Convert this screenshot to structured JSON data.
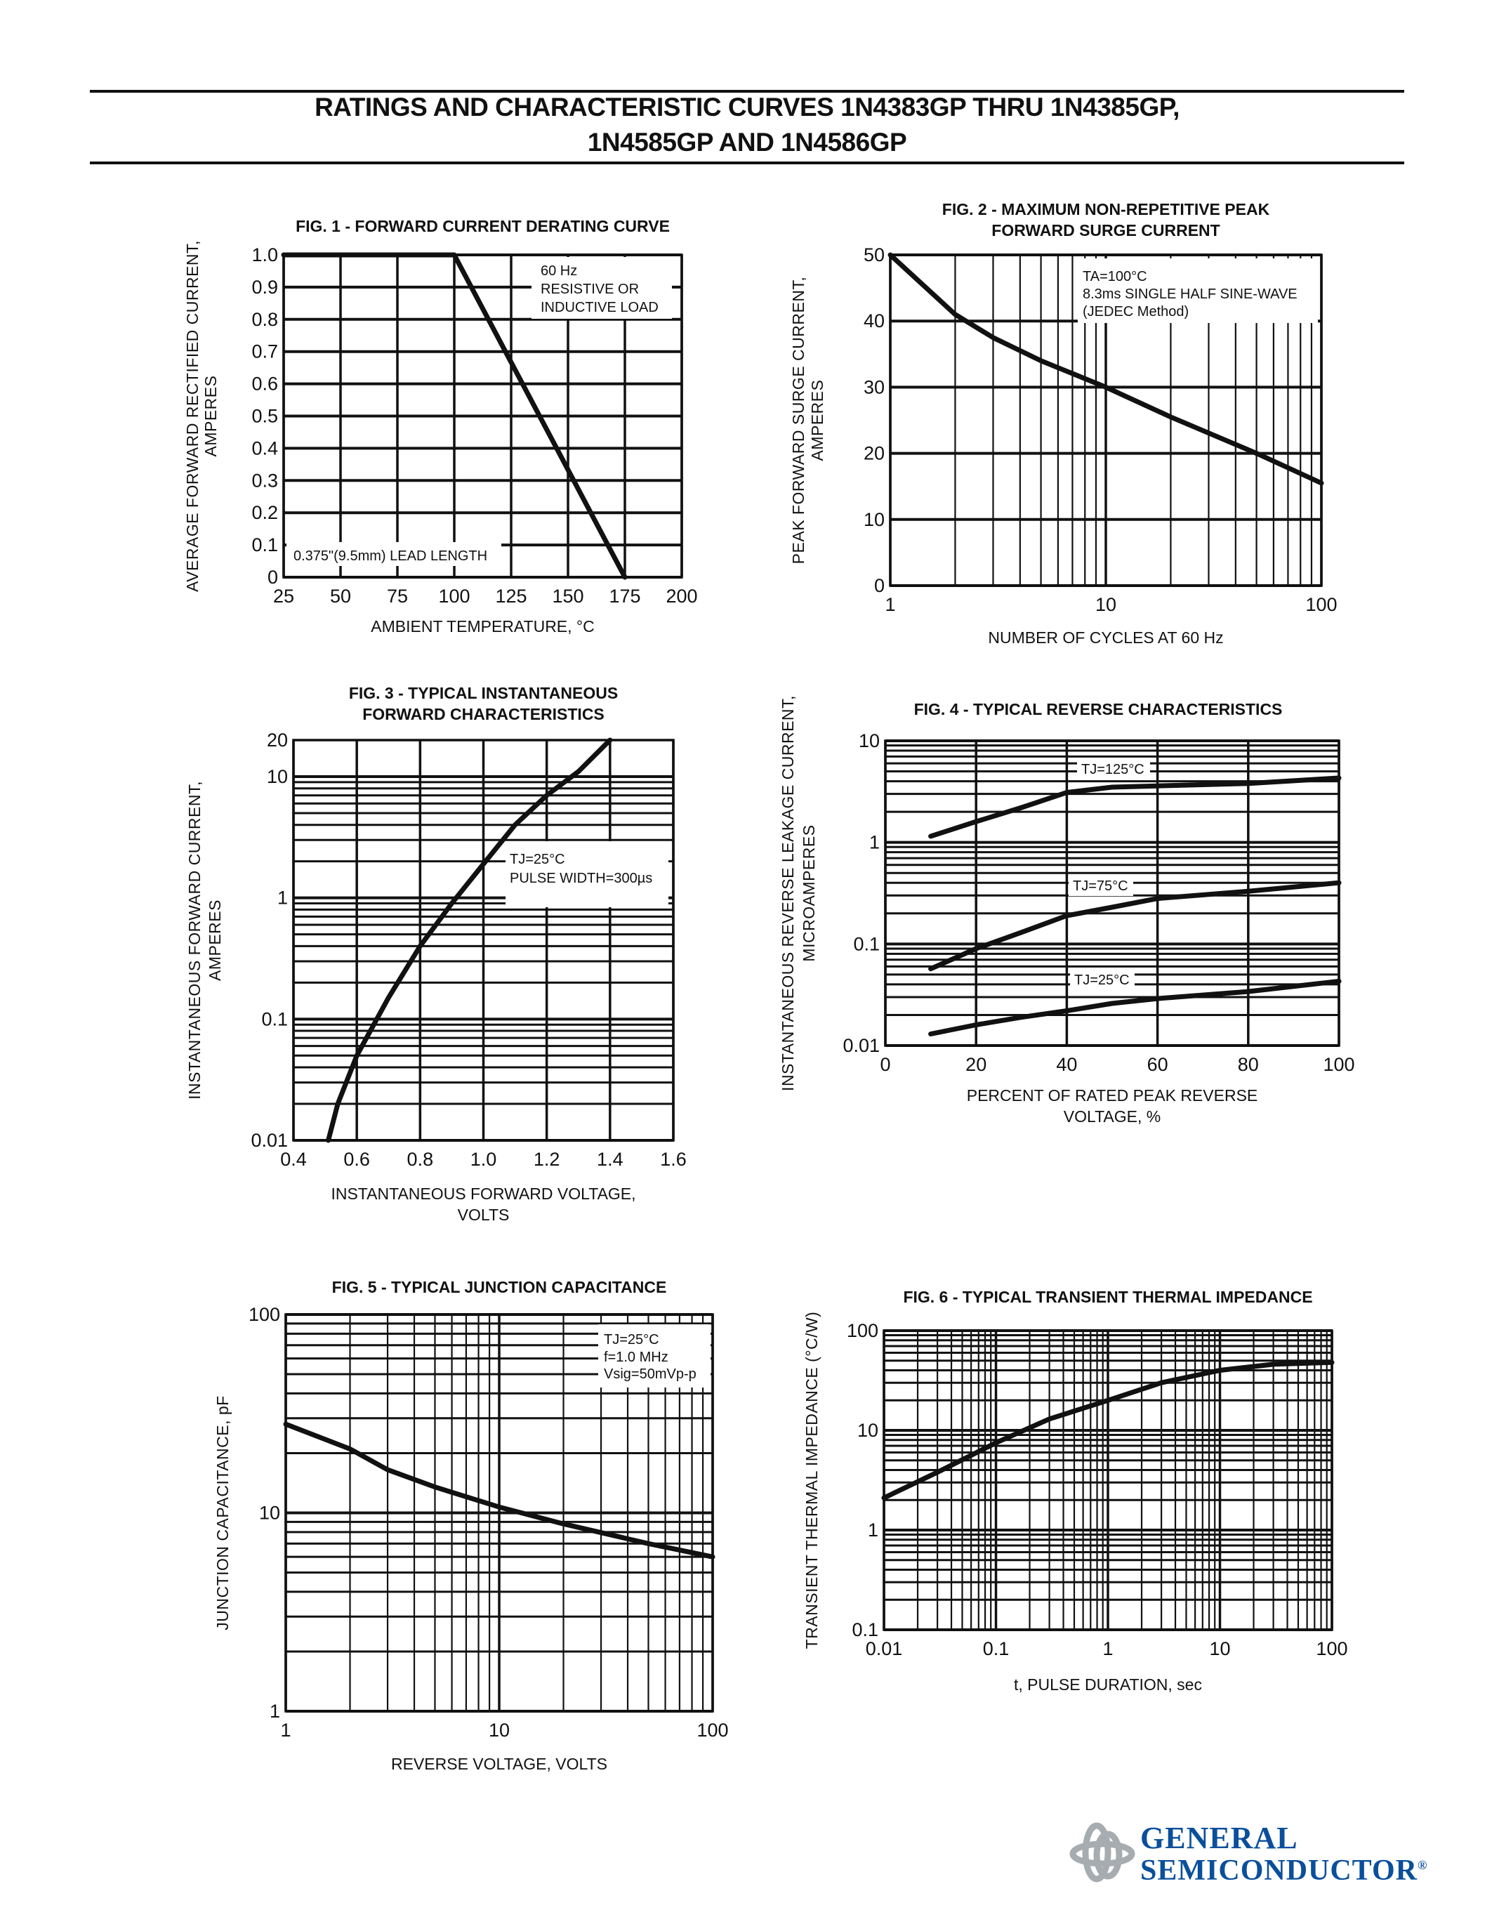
{
  "header": {
    "title_line1": "RATINGS AND CHARACTERISTIC CURVES 1N4383GP THRU 1N4385GP,",
    "title_line2": "1N4585GP AND 1N4586GP"
  },
  "logo": {
    "line1": "GENERAL",
    "line2": "SEMICONDUCTOR",
    "registered": "®",
    "text_color": "#0a4f9c",
    "mark_color": "#a7acb0"
  },
  "chart_data": [
    {
      "type": "line",
      "title_lines": [
        "FIG. 1 - FORWARD CURRENT DERATING CURVE"
      ],
      "xlabel_lines": [
        "AMBIENT TEMPERATURE, °C"
      ],
      "ylabel_lines": [
        "AVERAGE FORWARD RECTIFIED CURRENT,",
        "AMPERES"
      ],
      "x_scale": "linear",
      "y_scale": "linear",
      "xlim": [
        25,
        200
      ],
      "ylim": [
        0,
        1.0
      ],
      "xticks": [
        25,
        50,
        75,
        100,
        125,
        150,
        175,
        200
      ],
      "xtick_labels": [
        "25",
        "50",
        "75",
        "100",
        "125",
        "150",
        "175",
        "200"
      ],
      "yticks": [
        0,
        0.1,
        0.2,
        0.3,
        0.4,
        0.5,
        0.6,
        0.7,
        0.8,
        0.9,
        1.0
      ],
      "ytick_labels": [
        "0",
        "0.1",
        "0.2",
        "0.3",
        "0.4",
        "0.5",
        "0.6",
        "0.7",
        "0.8",
        "0.9",
        "1.0"
      ],
      "grid": true,
      "series": [
        {
          "points": [
            [
              25,
              1.0
            ],
            [
              100,
              1.0
            ],
            [
              175,
              0
            ]
          ]
        }
      ],
      "annotations": [
        [
          "60 Hz",
          "RESISTIVE OR",
          "INDUCTIVE LOAD"
        ],
        [
          "0.375\"(9.5mm) LEAD LENGTH"
        ]
      ]
    },
    {
      "type": "line",
      "title_lines": [
        "FIG. 2 - MAXIMUM NON-REPETITIVE PEAK",
        "FORWARD SURGE CURRENT"
      ],
      "xlabel_lines": [
        "NUMBER OF CYCLES AT 60 Hz"
      ],
      "ylabel_lines": [
        "PEAK FORWARD SURGE CURRENT,",
        "AMPERES"
      ],
      "x_scale": "log",
      "y_scale": "linear",
      "xlim": [
        1,
        100
      ],
      "ylim": [
        0,
        50
      ],
      "xticks": [
        1,
        10,
        100
      ],
      "xtick_labels": [
        "1",
        "10",
        "100"
      ],
      "yticks": [
        0,
        10,
        20,
        30,
        40,
        50
      ],
      "ytick_labels": [
        "0",
        "10",
        "20",
        "30",
        "40",
        "50"
      ],
      "grid": true,
      "series": [
        {
          "points": [
            [
              1,
              50
            ],
            [
              2,
              41
            ],
            [
              3,
              37.5
            ],
            [
              5,
              34
            ],
            [
              10,
              30
            ],
            [
              20,
              25.5
            ],
            [
              50,
              20
            ],
            [
              100,
              15.5
            ]
          ]
        }
      ],
      "annotations": [
        [
          "TA=100°C",
          "8.3ms SINGLE HALF SINE-WAVE",
          "(JEDEC Method)"
        ]
      ]
    },
    {
      "type": "line",
      "title_lines": [
        "FIG. 3 - TYPICAL INSTANTANEOUS",
        "FORWARD CHARACTERISTICS"
      ],
      "xlabel_lines": [
        "INSTANTANEOUS FORWARD VOLTAGE,",
        "VOLTS"
      ],
      "ylabel_lines": [
        "INSTANTANEOUS FORWARD CURRENT,",
        "AMPERES"
      ],
      "x_scale": "linear",
      "y_scale": "log",
      "xlim": [
        0.4,
        1.6
      ],
      "ylim": [
        0.01,
        20
      ],
      "xticks": [
        0.4,
        0.6,
        0.8,
        1.0,
        1.2,
        1.4,
        1.6
      ],
      "xtick_labels": [
        "0.4",
        "0.6",
        "0.8",
        "1.0",
        "1.2",
        "1.4",
        "1.6"
      ],
      "yticks": [
        0.01,
        0.1,
        1,
        10,
        20
      ],
      "ytick_labels": [
        "0.01",
        "0.1",
        "1",
        "10",
        "20"
      ],
      "grid": true,
      "series": [
        {
          "points": [
            [
              0.51,
              0.01
            ],
            [
              0.54,
              0.02
            ],
            [
              0.6,
              0.05
            ],
            [
              0.7,
              0.15
            ],
            [
              0.8,
              0.4
            ],
            [
              0.9,
              0.9
            ],
            [
              1.0,
              1.9
            ],
            [
              1.1,
              4
            ],
            [
              1.2,
              7
            ],
            [
              1.3,
              11
            ],
            [
              1.4,
              20
            ]
          ]
        }
      ],
      "annotations": [
        [
          "TJ=25°C",
          "PULSE WIDTH=300µs"
        ]
      ]
    },
    {
      "type": "line",
      "title_lines": [
        "FIG. 4 - TYPICAL REVERSE CHARACTERISTICS"
      ],
      "xlabel_lines": [
        "PERCENT OF RATED PEAK REVERSE",
        "VOLTAGE, %"
      ],
      "ylabel_lines": [
        "INSTANTANEOUS REVERSE LEAKAGE CURRENT,",
        "MICROAMPERES"
      ],
      "x_scale": "linear",
      "y_scale": "log",
      "xlim": [
        0,
        100
      ],
      "ylim": [
        0.01,
        10
      ],
      "xticks": [
        0,
        20,
        40,
        60,
        80,
        100
      ],
      "xtick_labels": [
        "0",
        "20",
        "40",
        "60",
        "80",
        "100"
      ],
      "yticks": [
        0.01,
        0.1,
        1,
        10
      ],
      "ytick_labels": [
        "0.01",
        "0.1",
        "1",
        "10"
      ],
      "grid": true,
      "series": [
        {
          "name": "TJ=125°C",
          "points": [
            [
              10,
              1.15
            ],
            [
              20,
              1.6
            ],
            [
              30,
              2.2
            ],
            [
              40,
              3.1
            ],
            [
              50,
              3.5
            ],
            [
              60,
              3.6
            ],
            [
              80,
              3.8
            ],
            [
              100,
              4.3
            ]
          ]
        },
        {
          "name": "TJ=75°C",
          "points": [
            [
              10,
              0.057
            ],
            [
              20,
              0.09
            ],
            [
              30,
              0.13
            ],
            [
              40,
              0.19
            ],
            [
              50,
              0.23
            ],
            [
              60,
              0.28
            ],
            [
              80,
              0.33
            ],
            [
              100,
              0.4
            ]
          ]
        },
        {
          "name": "TJ=25°C",
          "points": [
            [
              10,
              0.013
            ],
            [
              20,
              0.016
            ],
            [
              30,
              0.019
            ],
            [
              40,
              0.022
            ],
            [
              50,
              0.026
            ],
            [
              60,
              0.029
            ],
            [
              80,
              0.034
            ],
            [
              100,
              0.043
            ]
          ]
        }
      ],
      "annotations": []
    },
    {
      "type": "line",
      "title_lines": [
        "FIG. 5 - TYPICAL JUNCTION CAPACITANCE"
      ],
      "xlabel_lines": [
        "REVERSE VOLTAGE, VOLTS"
      ],
      "ylabel_lines": [
        "JUNCTION CAPACITANCE, pF"
      ],
      "x_scale": "log",
      "y_scale": "log",
      "xlim": [
        1,
        100
      ],
      "ylim": [
        1,
        100
      ],
      "xticks": [
        1,
        10,
        100
      ],
      "xtick_labels": [
        "1",
        "10",
        "100"
      ],
      "yticks": [
        1,
        10,
        100
      ],
      "ytick_labels": [
        "1",
        "10",
        "100"
      ],
      "grid": true,
      "series": [
        {
          "points": [
            [
              1,
              28
            ],
            [
              2,
              21
            ],
            [
              3,
              16.5
            ],
            [
              5,
              13.5
            ],
            [
              10,
              10.7
            ],
            [
              20,
              8.8
            ],
            [
              50,
              7
            ],
            [
              100,
              6
            ]
          ]
        }
      ],
      "annotations": [
        [
          "TJ=25°C",
          "f=1.0 MHz",
          "Vsig=50mVp-p"
        ]
      ]
    },
    {
      "type": "line",
      "title_lines": [
        "FIG. 6 - TYPICAL TRANSIENT THERMAL IMPEDANCE"
      ],
      "xlabel_lines": [
        "t, PULSE DURATION, sec"
      ],
      "ylabel_lines": [
        "TRANSIENT THERMAL IMPEDANCE (°C/W)"
      ],
      "x_scale": "log",
      "y_scale": "log",
      "xlim": [
        0.01,
        100
      ],
      "ylim": [
        0.1,
        100
      ],
      "xticks": [
        0.01,
        0.1,
        1,
        10,
        100
      ],
      "xtick_labels": [
        "0.01",
        "0.1",
        "1",
        "10",
        "100"
      ],
      "yticks": [
        0.1,
        1,
        10,
        100
      ],
      "ytick_labels": [
        "0.1",
        "1",
        "10",
        "100"
      ],
      "grid": true,
      "series": [
        {
          "points": [
            [
              0.01,
              2.1
            ],
            [
              0.03,
              3.8
            ],
            [
              0.1,
              7.5
            ],
            [
              0.3,
              13
            ],
            [
              1,
              20
            ],
            [
              3,
              30
            ],
            [
              10,
              40
            ],
            [
              30,
              46
            ],
            [
              100,
              48
            ]
          ]
        }
      ],
      "annotations": []
    }
  ]
}
